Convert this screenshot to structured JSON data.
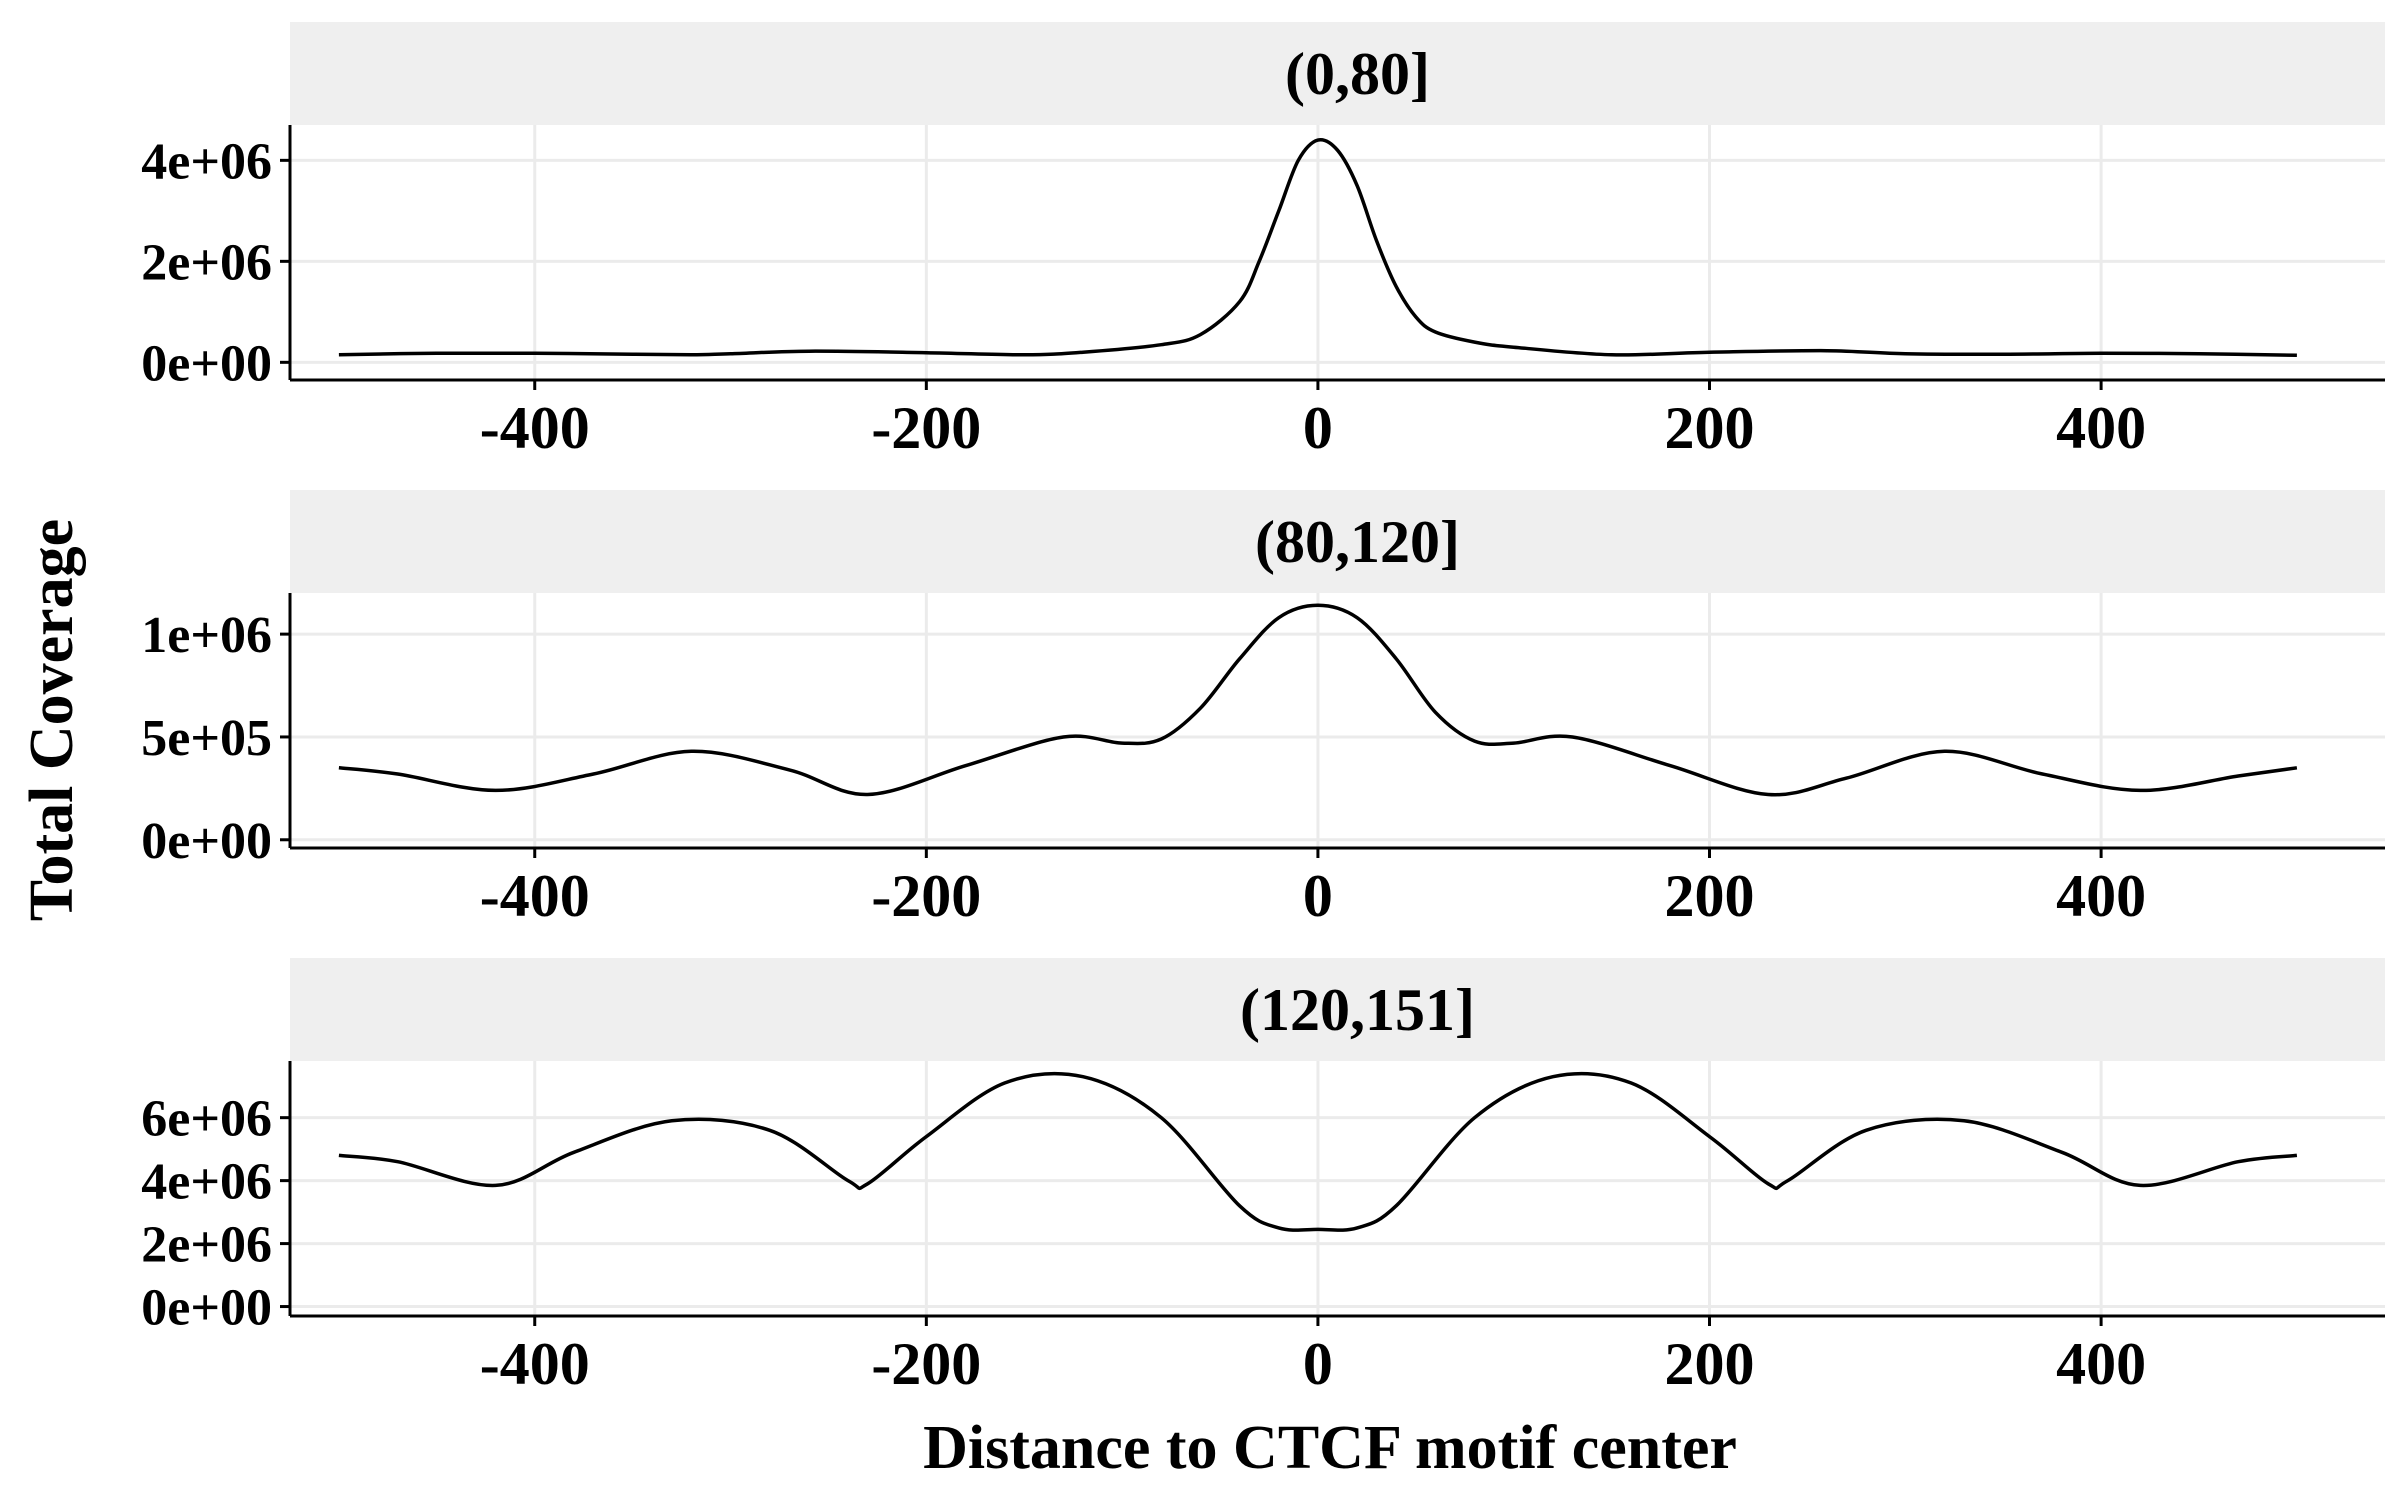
{
  "chart_data": {
    "type": "line",
    "ylabel": "Total Coverage",
    "xlabel": "Distance to CTCF motif center",
    "xlim": [
      -525,
      545
    ],
    "xticks": [
      -400,
      -200,
      0,
      200,
      400
    ],
    "xtick_labels": [
      "-400",
      "-200",
      "0",
      "200",
      "400"
    ],
    "grid": true,
    "line_color": "#000000",
    "strip_color": "#efefef",
    "grid_color": "#ebebeb",
    "panels": [
      {
        "title": "(0,80]",
        "ylim": [
          -350000,
          4700000
        ],
        "yticks": [
          0,
          2000000,
          4000000
        ],
        "ytick_labels": [
          "0e+00",
          "2e+06",
          "4e+06"
        ],
        "x": [
          -500,
          -450,
          -400,
          -350,
          -320,
          -300,
          -260,
          -200,
          -150,
          -120,
          -80,
          -60,
          -40,
          -30,
          -20,
          -10,
          0,
          10,
          20,
          30,
          40,
          50,
          60,
          80,
          100,
          150,
          200,
          260,
          300,
          350,
          400,
          450,
          500
        ],
        "y": [
          150000,
          180000,
          180000,
          160000,
          150000,
          170000,
          220000,
          190000,
          150000,
          200000,
          350000,
          550000,
          1200000,
          2000000,
          3000000,
          4000000,
          4400000,
          4200000,
          3500000,
          2400000,
          1500000,
          900000,
          600000,
          400000,
          300000,
          150000,
          200000,
          230000,
          170000,
          160000,
          180000,
          170000,
          140000
        ]
      },
      {
        "title": "(80,120]",
        "ylim": [
          -40000,
          1200000
        ],
        "yticks": [
          0,
          500000,
          1000000
        ],
        "ytick_labels": [
          "0e+00",
          "5e+05",
          "1e+06"
        ],
        "x": [
          -500,
          -470,
          -420,
          -370,
          -320,
          -270,
          -230,
          -180,
          -130,
          -100,
          -80,
          -60,
          -40,
          -20,
          0,
          20,
          40,
          60,
          80,
          100,
          130,
          180,
          230,
          270,
          320,
          370,
          420,
          470,
          500
        ],
        "y": [
          350000,
          320000,
          240000,
          320000,
          430000,
          340000,
          220000,
          360000,
          500000,
          470000,
          490000,
          640000,
          880000,
          1080000,
          1140000,
          1080000,
          880000,
          620000,
          480000,
          470000,
          500000,
          360000,
          220000,
          300000,
          430000,
          320000,
          240000,
          310000,
          350000
        ]
      },
      {
        "title": "(120,151]",
        "ylim": [
          -300000,
          7800000
        ],
        "yticks": [
          0,
          2000000,
          4000000,
          6000000
        ],
        "ytick_labels": [
          "0e+00",
          "2e+06",
          "4e+06",
          "6e+06"
        ],
        "x": [
          -500,
          -470,
          -420,
          -380,
          -330,
          -280,
          -240,
          -230,
          -200,
          -160,
          -120,
          -80,
          -40,
          -20,
          0,
          20,
          40,
          80,
          120,
          160,
          200,
          230,
          240,
          280,
          330,
          380,
          420,
          470,
          500
        ],
        "y": [
          4800000,
          4600000,
          3850000,
          4900000,
          5900000,
          5600000,
          4000000,
          3900000,
          5400000,
          7100000,
          7300000,
          6000000,
          3200000,
          2500000,
          2450000,
          2500000,
          3200000,
          6000000,
          7300000,
          7100000,
          5400000,
          3900000,
          4000000,
          5600000,
          5900000,
          4900000,
          3850000,
          4600000,
          4800000
        ]
      }
    ]
  }
}
